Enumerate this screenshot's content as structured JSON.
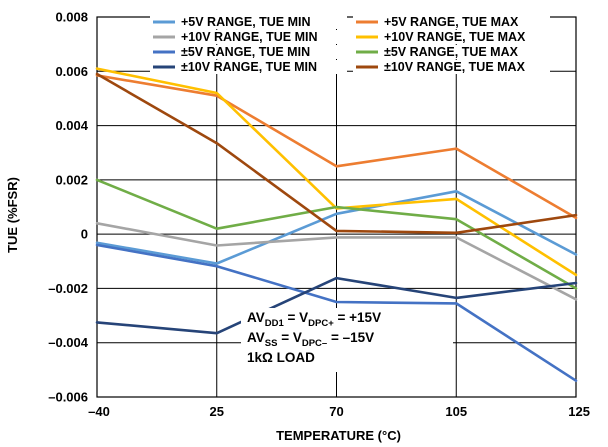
{
  "chart_data": {
    "type": "line",
    "xlabel": "TEMPERATURE (°C)",
    "ylabel": "TUE (%FSR)",
    "x": [
      -40,
      25,
      70,
      105,
      125
    ],
    "x_tick_labels": [
      "–40",
      "25",
      "70",
      "105",
      "125"
    ],
    "ylim": [
      -0.006,
      0.008
    ],
    "y_ticks": [
      -0.006,
      -0.004,
      -0.002,
      0,
      0.002,
      0.004,
      0.006,
      0.008
    ],
    "y_tick_labels": [
      "–0.006",
      "–0.004",
      "–0.002",
      "0",
      "0.002",
      "0.004",
      "0.006",
      "0.008"
    ],
    "grid": true,
    "legend_position": "top",
    "series": [
      {
        "name": "+5V RANGE, TUE MIN",
        "color": "#5b9bd5",
        "values": [
          -0.00032,
          -0.00108,
          0.00075,
          0.00158,
          -0.00075
        ]
      },
      {
        "name": "+5V RANGE, TUE MAX",
        "color": "#ed7d31",
        "values": [
          0.00585,
          0.0051,
          0.0025,
          0.00315,
          0.0006
        ]
      },
      {
        "name": "+10V RANGE, TUE MIN",
        "color": "#a5a5a5",
        "values": [
          0.0004,
          -0.00042,
          -0.00012,
          -0.00012,
          -0.0024
        ]
      },
      {
        "name": "+10V RANGE, TUE MAX",
        "color": "#ffc000",
        "values": [
          0.0061,
          0.0052,
          0.00095,
          0.0013,
          -0.0015
        ]
      },
      {
        "name": "±5V RANGE, TUE MIN",
        "color": "#4472c4",
        "values": [
          -0.0004,
          -0.00118,
          -0.0025,
          -0.00255,
          -0.0054
        ]
      },
      {
        "name": "±5V RANGE, TUE MAX",
        "color": "#70ad47",
        "values": [
          0.002,
          0.0002,
          0.001,
          0.00055,
          -0.002
        ]
      },
      {
        "name": "±10V RANGE, TUE MIN",
        "color": "#264478",
        "values": [
          -0.00325,
          -0.00365,
          -0.00162,
          -0.00235,
          -0.0018
        ]
      },
      {
        "name": "±10V RANGE, TUE MAX",
        "color": "#9e480e",
        "values": [
          0.0059,
          0.00335,
          0.00012,
          5e-05,
          0.0007
        ]
      }
    ],
    "annotation": {
      "lines": [
        {
          "base": "AV",
          "sub": "DD1",
          "mid": " = V",
          "sub2": "DPC+",
          "tail": " = +15V"
        },
        {
          "base": "AV",
          "sub": "SS",
          "mid": " = V",
          "sub2": "DPC–",
          "tail": " = –15V"
        },
        {
          "base": "1kΩ LOAD",
          "sub": "",
          "mid": "",
          "sub2": "",
          "tail": ""
        }
      ]
    }
  }
}
